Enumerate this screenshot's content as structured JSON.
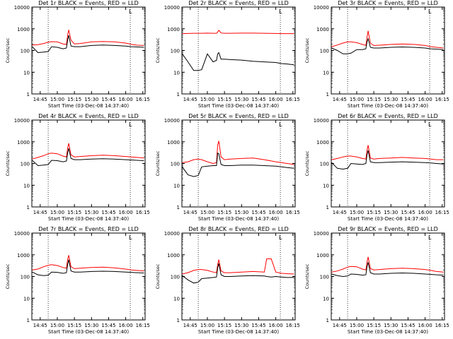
{
  "chart_data": [
    {
      "type": "line",
      "title": "Det 1r BLACK = Events, RED = LLD",
      "xlabel": "Start Time (03-Dec-08 14:37:40)",
      "ylabel": "Counts/sec",
      "yscale": "log",
      "ylim": [
        1,
        10000
      ],
      "xlim": [
        "14:37:40",
        "16:17"
      ],
      "x_ticks": [
        "14:45",
        "15:00",
        "15:15",
        "15:30",
        "15:45",
        "16:00",
        "16:15"
      ],
      "y_ticks": [
        "1",
        "10",
        "100",
        "1000",
        "10000"
      ],
      "vlines": [
        "14:52",
        "16:04"
      ],
      "corner_mark": "L",
      "x": [
        "14:38",
        "14:43",
        "14:48",
        "14:52",
        "14:55",
        "15:00",
        "15:05",
        "15:08",
        "15:09",
        "15:10",
        "15:12",
        "15:15",
        "15:20",
        "15:30",
        "15:40",
        "15:50",
        "16:00",
        "16:05",
        "16:10",
        "16:16"
      ],
      "series": [
        {
          "color": "#ff0000",
          "values": [
            180,
            185,
            210,
            240,
            255,
            250,
            200,
            190,
            500,
            900,
            300,
            200,
            210,
            250,
            260,
            250,
            220,
            190,
            175,
            170
          ]
        },
        {
          "color": "#000000",
          "values": [
            150,
            80,
            85,
            90,
            150,
            140,
            120,
            130,
            300,
            500,
            160,
            150,
            150,
            170,
            180,
            170,
            160,
            150,
            145,
            140
          ]
        }
      ]
    },
    {
      "type": "line",
      "title": "Det 2r BLACK = Events, RED = LLD",
      "xlabel": "Start Time (03-Dec-08 14:37:40)",
      "ylabel": "Counts/sec",
      "yscale": "log",
      "ylim": [
        1,
        10000
      ],
      "xlim": [
        "14:37:40",
        "16:17"
      ],
      "x_ticks": [
        "14:45",
        "15:00",
        "15:15",
        "15:30",
        "15:45",
        "16:00",
        "16:15"
      ],
      "y_ticks": [
        "1",
        "10",
        "100",
        "1000",
        "10000"
      ],
      "vlines": [
        "14:52",
        "16:04"
      ],
      "corner_mark": "L",
      "x": [
        "14:38",
        "14:43",
        "14:48",
        "14:52",
        "14:55",
        "15:00",
        "15:05",
        "15:08",
        "15:09",
        "15:10",
        "15:12",
        "15:15",
        "15:20",
        "15:30",
        "15:40",
        "15:50",
        "16:00",
        "16:05",
        "16:10",
        "16:16"
      ],
      "series": [
        {
          "color": "#ff0000",
          "values": [
            600,
            610,
            620,
            620,
            620,
            630,
            620,
            620,
            700,
            850,
            640,
            620,
            620,
            630,
            630,
            620,
            610,
            600,
            600,
            600
          ]
        },
        {
          "color": "#000000",
          "values": [
            70,
            30,
            12,
            12,
            13,
            70,
            30,
            35,
            70,
            80,
            40,
            40,
            38,
            36,
            32,
            30,
            28,
            25,
            24,
            22
          ]
        }
      ]
    },
    {
      "type": "line",
      "title": "Det 3r BLACK = Events, RED = LLD",
      "xlabel": "Start Time (03-Dec-08 14:37:40)",
      "ylabel": "Counts/sec",
      "yscale": "log",
      "ylim": [
        1,
        10000
      ],
      "xlim": [
        "14:37:40",
        "16:17"
      ],
      "x_ticks": [
        "14:45",
        "15:00",
        "15:15",
        "15:30",
        "15:45",
        "16:00",
        "16:15"
      ],
      "y_ticks": [
        "1",
        "10",
        "100",
        "1000",
        "10000"
      ],
      "vlines": [
        "14:52",
        "16:04"
      ],
      "corner_mark": "L",
      "x": [
        "14:38",
        "14:43",
        "14:48",
        "14:52",
        "14:55",
        "15:00",
        "15:05",
        "15:08",
        "15:09",
        "15:10",
        "15:12",
        "15:15",
        "15:20",
        "15:30",
        "15:40",
        "15:50",
        "16:00",
        "16:05",
        "16:10",
        "16:16"
      ],
      "series": [
        {
          "color": "#ff0000",
          "values": [
            150,
            180,
            220,
            250,
            250,
            230,
            190,
            170,
            400,
            800,
            220,
            170,
            175,
            190,
            200,
            190,
            170,
            150,
            140,
            130
          ]
        },
        {
          "color": "#000000",
          "values": [
            130,
            100,
            70,
            70,
            75,
            110,
            110,
            120,
            250,
            350,
            140,
            130,
            130,
            140,
            145,
            140,
            130,
            120,
            115,
            110
          ]
        }
      ]
    },
    {
      "type": "line",
      "title": "Det 4r BLACK = Events, RED = LLD",
      "xlabel": "Start Time (03-Dec-08 14:37:40)",
      "ylabel": "Counts/sec",
      "yscale": "log",
      "ylim": [
        1,
        10000
      ],
      "xlim": [
        "14:37:40",
        "16:17"
      ],
      "x_ticks": [
        "14:45",
        "15:00",
        "15:15",
        "15:30",
        "15:45",
        "16:00",
        "16:15"
      ],
      "y_ticks": [
        "1",
        "10",
        "100",
        "1000",
        "10000"
      ],
      "vlines": [
        "14:52",
        "16:04"
      ],
      "corner_mark": "L",
      "x": [
        "14:38",
        "14:43",
        "14:48",
        "14:52",
        "14:55",
        "15:00",
        "15:05",
        "15:08",
        "15:09",
        "15:10",
        "15:12",
        "15:15",
        "15:20",
        "15:30",
        "15:40",
        "15:50",
        "16:00",
        "16:05",
        "16:10",
        "16:16"
      ],
      "series": [
        {
          "color": "#ff0000",
          "values": [
            160,
            190,
            230,
            280,
            300,
            280,
            220,
            200,
            500,
            850,
            250,
            200,
            210,
            230,
            240,
            230,
            210,
            200,
            190,
            180
          ]
        },
        {
          "color": "#000000",
          "values": [
            140,
            80,
            85,
            90,
            140,
            135,
            120,
            130,
            300,
            500,
            170,
            150,
            150,
            160,
            165,
            160,
            150,
            145,
            140,
            135
          ]
        }
      ]
    },
    {
      "type": "line",
      "title": "Det 5r BLACK = Events, RED = LLD",
      "xlabel": "Start Time (03-Dec-08 14:37:40)",
      "ylabel": "Counts/sec",
      "yscale": "log",
      "ylim": [
        1,
        10000
      ],
      "xlim": [
        "14:37:40",
        "16:17"
      ],
      "x_ticks": [
        "14:45",
        "15:00",
        "15:15",
        "15:30",
        "15:45",
        "16:00",
        "16:15"
      ],
      "y_ticks": [
        "1",
        "10",
        "100",
        "1000",
        "10000"
      ],
      "vlines": [
        "14:52",
        "16:04"
      ],
      "corner_mark": "L",
      "x": [
        "14:38",
        "14:43",
        "14:48",
        "14:52",
        "14:55",
        "15:00",
        "15:05",
        "15:08",
        "15:09",
        "15:10",
        "15:12",
        "15:15",
        "15:20",
        "15:30",
        "15:40",
        "15:50",
        "16:00",
        "16:05",
        "16:10",
        "16:16"
      ],
      "series": [
        {
          "color": "#ff0000",
          "values": [
            110,
            120,
            150,
            160,
            150,
            120,
            100,
            110,
            700,
            1100,
            200,
            150,
            160,
            170,
            180,
            150,
            120,
            110,
            100,
            90
          ]
        },
        {
          "color": "#000000",
          "values": [
            70,
            30,
            25,
            28,
            70,
            75,
            80,
            80,
            300,
            280,
            90,
            80,
            80,
            85,
            85,
            80,
            75,
            70,
            65,
            60
          ]
        }
      ]
    },
    {
      "type": "line",
      "title": "Det 6r BLACK = Events, RED = LLD",
      "xlabel": "Start Time (03-Dec-08 14:37:40)",
      "ylabel": "Counts/sec",
      "yscale": "log",
      "ylim": [
        1,
        10000
      ],
      "xlim": [
        "14:37:40",
        "16:17"
      ],
      "x_ticks": [
        "14:45",
        "15:00",
        "15:15",
        "15:30",
        "15:45",
        "16:00",
        "16:15"
      ],
      "y_ticks": [
        "1",
        "10",
        "100",
        "1000",
        "10000"
      ],
      "vlines": [
        "14:52",
        "16:04"
      ],
      "corner_mark": "L",
      "x": [
        "14:38",
        "14:43",
        "14:48",
        "14:52",
        "14:55",
        "15:00",
        "15:05",
        "15:08",
        "15:09",
        "15:10",
        "15:12",
        "15:15",
        "15:20",
        "15:30",
        "15:40",
        "15:50",
        "16:00",
        "16:05",
        "16:10",
        "16:16"
      ],
      "series": [
        {
          "color": "#ff0000",
          "values": [
            150,
            170,
            200,
            220,
            220,
            200,
            170,
            160,
            400,
            700,
            180,
            160,
            170,
            180,
            190,
            180,
            170,
            160,
            150,
            150
          ]
        },
        {
          "color": "#000000",
          "values": [
            110,
            60,
            55,
            60,
            100,
            95,
            90,
            100,
            250,
            400,
            120,
            110,
            110,
            115,
            120,
            115,
            110,
            105,
            100,
            95
          ]
        }
      ]
    },
    {
      "type": "line",
      "title": "Det 7r BLACK = Events, RED = LLD",
      "xlabel": "Start Time (03-Dec-08 14:37:40)",
      "ylabel": "Counts/sec",
      "yscale": "log",
      "ylim": [
        1,
        10000
      ],
      "xlim": [
        "14:37:40",
        "16:17"
      ],
      "x_ticks": [
        "14:45",
        "15:00",
        "15:15",
        "15:30",
        "15:45",
        "16:00",
        "16:15"
      ],
      "y_ticks": [
        "1",
        "10",
        "100",
        "1000",
        "10000"
      ],
      "vlines": [
        "14:52",
        "16:04"
      ],
      "corner_mark": "L",
      "x": [
        "14:38",
        "14:43",
        "14:48",
        "14:52",
        "14:55",
        "15:00",
        "15:05",
        "15:08",
        "15:09",
        "15:10",
        "15:12",
        "15:15",
        "15:20",
        "15:30",
        "15:40",
        "15:50",
        "16:00",
        "16:05",
        "16:10",
        "16:16"
      ],
      "series": [
        {
          "color": "#ff0000",
          "values": [
            200,
            220,
            280,
            330,
            350,
            320,
            260,
            240,
            600,
            950,
            280,
            230,
            240,
            260,
            270,
            250,
            220,
            200,
            190,
            180
          ]
        },
        {
          "color": "#000000",
          "values": [
            160,
            120,
            110,
            115,
            160,
            155,
            140,
            150,
            350,
            600,
            180,
            160,
            160,
            170,
            175,
            170,
            160,
            155,
            150,
            145
          ]
        }
      ]
    },
    {
      "type": "line",
      "title": "Det 8r BLACK = Events, RED = LLD",
      "xlabel": "Start Time (03-Dec-08 14:37:40)",
      "ylabel": "Counts/sec",
      "yscale": "log",
      "ylim": [
        1,
        10000
      ],
      "xlim": [
        "14:37:40",
        "16:17"
      ],
      "x_ticks": [
        "14:45",
        "15:00",
        "15:15",
        "15:30",
        "15:45",
        "16:00",
        "16:15"
      ],
      "y_ticks": [
        "1",
        "10",
        "100",
        "1000",
        "10000"
      ],
      "vlines": [
        "14:52",
        "16:04"
      ],
      "corner_mark": "L",
      "x": [
        "14:38",
        "14:43",
        "14:48",
        "14:52",
        "14:55",
        "15:00",
        "15:05",
        "15:08",
        "15:09",
        "15:10",
        "15:12",
        "15:15",
        "15:20",
        "15:30",
        "15:40",
        "15:50",
        "15:52",
        "15:56",
        "16:00",
        "16:05",
        "16:10",
        "16:16"
      ],
      "series": [
        {
          "color": "#ff0000",
          "values": [
            130,
            150,
            190,
            210,
            210,
            190,
            160,
            150,
            350,
            600,
            180,
            150,
            150,
            160,
            170,
            160,
            650,
            650,
            160,
            140,
            135,
            130
          ]
        },
        {
          "color": "#000000",
          "values": [
            110,
            70,
            50,
            55,
            80,
            85,
            90,
            95,
            250,
            400,
            120,
            100,
            100,
            105,
            110,
            105,
            100,
            95,
            100,
            95,
            90,
            90
          ]
        }
      ]
    },
    {
      "type": "line",
      "title": "Det 9r BLACK = Events, RED = LLD",
      "xlabel": "Start Time (03-Dec-08 14:37:40)",
      "ylabel": "Counts/sec",
      "yscale": "log",
      "ylim": [
        1,
        10000
      ],
      "xlim": [
        "14:37:40",
        "16:17"
      ],
      "x_ticks": [
        "14:45",
        "15:00",
        "15:15",
        "15:30",
        "15:45",
        "16:00",
        "16:15"
      ],
      "y_ticks": [
        "1",
        "10",
        "100",
        "1000",
        "10000"
      ],
      "vlines": [
        "14:52",
        "16:04"
      ],
      "corner_mark": "L",
      "x": [
        "14:38",
        "14:43",
        "14:48",
        "14:52",
        "14:55",
        "15:00",
        "15:05",
        "15:08",
        "15:09",
        "15:10",
        "15:12",
        "15:15",
        "15:20",
        "15:30",
        "15:40",
        "15:50",
        "16:00",
        "16:05",
        "16:10",
        "16:16"
      ],
      "series": [
        {
          "color": "#ff0000",
          "values": [
            160,
            180,
            220,
            270,
            290,
            280,
            220,
            200,
            450,
            800,
            230,
            200,
            210,
            230,
            240,
            230,
            210,
            190,
            170,
            160
          ]
        },
        {
          "color": "#000000",
          "values": [
            130,
            110,
            100,
            105,
            130,
            125,
            115,
            120,
            280,
            450,
            150,
            130,
            130,
            140,
            145,
            140,
            130,
            125,
            120,
            115
          ]
        }
      ]
    }
  ]
}
